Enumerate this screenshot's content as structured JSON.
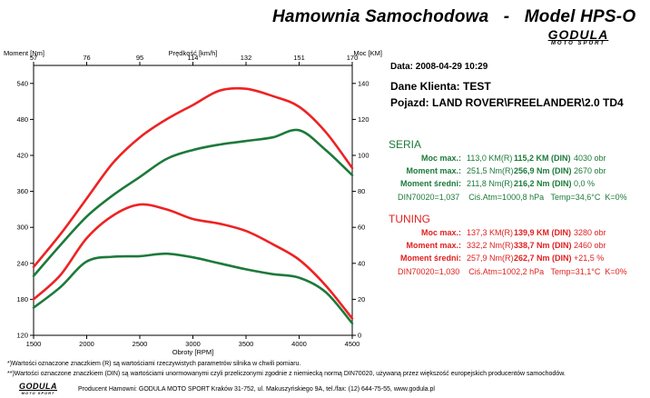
{
  "header": {
    "title": "Hamownia Samochodowa   -   Model HPS-O",
    "logo_word": "GODULA",
    "logo_sub": "MOTO SPORT"
  },
  "info": {
    "date": "Data: 2008-04-29  10:29",
    "client": "Dane Klienta: TEST",
    "vehicle": "Pojazd: LAND ROVER\\FREELANDER\\2.0 TD4"
  },
  "seria": {
    "label": "SERIA",
    "rows": [
      {
        "label": "Moc max.:",
        "r": "113,0 KM(R)",
        "din": "115,2 KM (DIN)",
        "extra": "4030 obr"
      },
      {
        "label": "Moment max.:",
        "r": "251,5 Nm(R)",
        "din": "256,9 Nm (DIN)",
        "extra": "2670 obr"
      },
      {
        "label": "Moment średni:",
        "r": "211,8 Nm(R)",
        "din": "216,2 Nm (DIN)",
        "extra": "0,0 %"
      }
    ],
    "din_line": "DIN70020=1,037    Ciś.Atm=1000,8 hPa   Temp=34,6°C  K=0%"
  },
  "tuning": {
    "label": "TUNING",
    "rows": [
      {
        "label": "Moc max.:",
        "r": "137,3 KM(R)",
        "din": "139,9 KM (DIN)",
        "extra": "3280 obr"
      },
      {
        "label": "Moment max.:",
        "r": "332,2 Nm(R)",
        "din": "338,7 Nm (DIN)",
        "extra": "2460 obr"
      },
      {
        "label": "Moment średni:",
        "r": "257,9 Nm(R)",
        "din": "262,7 Nm (DIN)",
        "extra": "+21,5 %"
      }
    ],
    "din_line": "DIN70020=1,030    Ciś.Atm=1002,2 hPa   Temp=31,1°C  K=0%"
  },
  "footer": {
    "note1": "*)Wartości oznaczone znaczkiem (R) są wartościami rzeczywistych parametrów silnika w chwili pomiaru.",
    "note2": "**)Wartości oznaczone znaczkiem (DIN) są wartościami unormowanymi czyli przeliczonymi zgodnie z niemiecką normą DIN70020, używaną przez większość europejskich producentów samochodów.",
    "producer": "Producent Hamowni: GODULA MOTO SPORT Kraków 31-752, ul. Makuszyńskiego 9A, tel./fax: (12) 644-75-55, www.godula.pl"
  },
  "chart_data": {
    "type": "line",
    "xlabel": "Obroty [RPM]",
    "ylabel_left": "Moment [Nm]",
    "ylabel_right": "Moc [KM]",
    "top_axis_label": "Prędkość [km/h]",
    "xlim": [
      1500,
      4500
    ],
    "ylim_left": [
      120,
      570
    ],
    "ylim_right": [
      0,
      150
    ],
    "x_ticks": [
      "1500",
      "2000",
      "2500",
      "3000",
      "3500",
      "4000",
      "4500"
    ],
    "y_left_ticks": [
      "120",
      "180",
      "240",
      "300",
      "360",
      "420",
      "480",
      "540"
    ],
    "y_right_ticks": [
      "0",
      "20",
      "40",
      "60",
      "80",
      "100",
      "120",
      "140"
    ],
    "top_ticks": [
      "57",
      "76",
      "95",
      "114",
      "132",
      "151",
      "170"
    ],
    "grid": false,
    "colors": {
      "tuning": "#ee2222",
      "seria": "#1c7a3a"
    },
    "x": [
      1500,
      1750,
      2000,
      2250,
      2500,
      2750,
      3000,
      3250,
      3500,
      3750,
      4000,
      4250,
      4500
    ],
    "series": [
      {
        "name": "TUNING",
        "kind": "torque",
        "axis": "left",
        "color": "#ee2222",
        "values": [
          180,
          220,
          282,
          320,
          338,
          330,
          314,
          306,
          294,
          272,
          246,
          203,
          148
        ]
      },
      {
        "name": "TUNING",
        "kind": "power",
        "axis": "right",
        "color": "#ee2222",
        "values": [
          38,
          56,
          76,
          96,
          110,
          120,
          128,
          136,
          137,
          133,
          127,
          113,
          93
        ]
      },
      {
        "name": "SERIA",
        "kind": "torque",
        "axis": "left",
        "color": "#1c7a3a",
        "values": [
          166,
          200,
          243,
          251,
          252,
          256,
          250,
          240,
          230,
          222,
          216,
          192,
          140
        ]
      },
      {
        "name": "SERIA",
        "kind": "power",
        "axis": "right",
        "color": "#1c7a3a",
        "values": [
          33,
          50,
          66,
          78,
          88,
          98,
          103,
          106,
          108,
          110,
          114,
          103,
          89
        ]
      }
    ]
  }
}
